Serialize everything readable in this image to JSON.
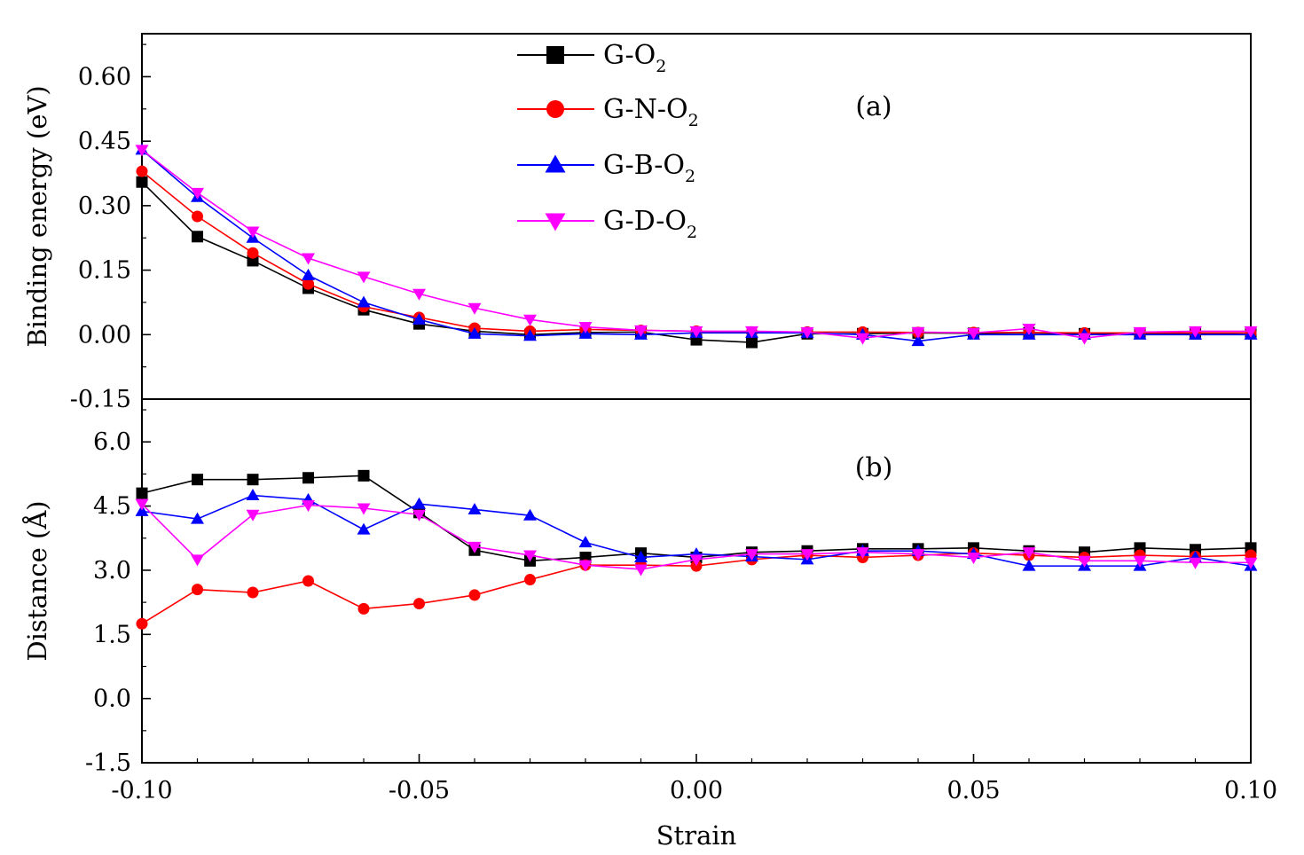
{
  "chart_data": [
    {
      "panel_label": "(a)",
      "type": "line",
      "ylabel": "Binding energy (eV)",
      "ylim": [
        -0.15,
        0.7
      ],
      "yticks": [
        "-0.15",
        "0.00",
        "0.15",
        "0.30",
        "0.45",
        "0.60"
      ],
      "ytick_values": [
        -0.15,
        0.0,
        0.15,
        0.3,
        0.45,
        0.6
      ],
      "x": [
        -0.1,
        -0.09,
        -0.08,
        -0.07,
        -0.06,
        -0.05,
        -0.04,
        -0.03,
        -0.02,
        -0.01,
        0.0,
        0.01,
        0.02,
        0.03,
        0.04,
        0.05,
        0.06,
        0.07,
        0.08,
        0.09,
        0.1
      ],
      "series": [
        {
          "name": "G-O2",
          "values": [
            0.355,
            0.228,
            0.172,
            0.108,
            0.058,
            0.025,
            0.008,
            0.0,
            0.005,
            0.006,
            -0.012,
            -0.018,
            0.002,
            0.002,
            0.004,
            0.003,
            0.004,
            0.002,
            0.003,
            0.002,
            0.004
          ]
        },
        {
          "name": "G-N-O2",
          "values": [
            0.38,
            0.275,
            0.19,
            0.118,
            0.065,
            0.04,
            0.015,
            0.008,
            0.012,
            0.01,
            0.008,
            0.006,
            0.006,
            0.006,
            0.005,
            0.005,
            0.005,
            0.004,
            0.004,
            0.004,
            0.004
          ]
        },
        {
          "name": "G-B-O2",
          "values": [
            0.43,
            0.32,
            0.225,
            0.138,
            0.075,
            0.035,
            0.002,
            -0.003,
            0.002,
            0.0,
            0.004,
            0.004,
            0.004,
            0.0,
            -0.015,
            0.0,
            0.0,
            0.0,
            0.0,
            0.0,
            0.0
          ]
        },
        {
          "name": "G-D-O2",
          "values": [
            0.43,
            0.33,
            0.24,
            0.178,
            0.135,
            0.095,
            0.062,
            0.035,
            0.018,
            0.01,
            0.008,
            0.008,
            0.006,
            -0.008,
            0.006,
            0.004,
            0.014,
            -0.008,
            0.006,
            0.008,
            0.008
          ]
        }
      ]
    },
    {
      "panel_label": "(b)",
      "type": "line",
      "ylabel": "Distance (Å)",
      "xlabel": "Strain",
      "ylim": [
        -1.5,
        7.0
      ],
      "yticks": [
        "-1.5",
        "0.0",
        "1.5",
        "3.0",
        "4.5",
        "6.0"
      ],
      "ytick_values": [
        -1.5,
        0.0,
        1.5,
        3.0,
        4.5,
        6.0
      ],
      "xlim": [
        -0.1,
        0.1
      ],
      "xticks": [
        "-0.10",
        "-0.05",
        "0.00",
        "0.05",
        "0.10"
      ],
      "xtick_values": [
        -0.1,
        -0.05,
        0.0,
        0.05,
        0.1
      ],
      "x": [
        -0.1,
        -0.09,
        -0.08,
        -0.07,
        -0.06,
        -0.05,
        -0.04,
        -0.03,
        -0.02,
        -0.01,
        0.0,
        0.01,
        0.02,
        0.03,
        0.04,
        0.05,
        0.06,
        0.07,
        0.08,
        0.09,
        0.1
      ],
      "series": [
        {
          "name": "G-O2",
          "values": [
            4.8,
            5.12,
            5.12,
            5.16,
            5.21,
            4.35,
            3.47,
            3.22,
            3.3,
            3.4,
            3.3,
            3.42,
            3.45,
            3.5,
            3.5,
            3.52,
            3.45,
            3.42,
            3.52,
            3.48,
            3.52
          ]
        },
        {
          "name": "G-N-O2",
          "values": [
            1.75,
            2.55,
            2.48,
            2.75,
            2.1,
            2.22,
            2.42,
            2.78,
            3.12,
            3.12,
            3.1,
            3.25,
            3.35,
            3.3,
            3.35,
            3.4,
            3.35,
            3.3,
            3.35,
            3.32,
            3.35
          ]
        },
        {
          "name": "G-B-O2",
          "values": [
            4.38,
            4.2,
            4.75,
            4.65,
            3.95,
            4.55,
            4.42,
            4.28,
            3.65,
            3.3,
            3.38,
            3.32,
            3.25,
            3.45,
            3.45,
            3.38,
            3.1,
            3.1,
            3.1,
            3.3,
            3.1
          ]
        },
        {
          "name": "G-D-O2",
          "values": [
            4.55,
            3.25,
            4.3,
            4.52,
            4.45,
            4.3,
            3.55,
            3.35,
            3.12,
            3.02,
            3.25,
            3.38,
            3.38,
            3.42,
            3.38,
            3.3,
            3.42,
            3.22,
            3.22,
            3.18,
            3.18
          ]
        }
      ]
    }
  ],
  "legend": [
    {
      "base": "G-O",
      "sub": "2",
      "color": "#000000",
      "marker": "square"
    },
    {
      "base": "G-N-O",
      "sub": "2",
      "color": "#ff0000",
      "marker": "circle"
    },
    {
      "base": "G-B-O",
      "sub": "2",
      "color": "#0000ff",
      "marker": "triangle-up"
    },
    {
      "base": "G-D-O",
      "sub": "2",
      "color": "#ff00ff",
      "marker": "triangle-down"
    }
  ]
}
